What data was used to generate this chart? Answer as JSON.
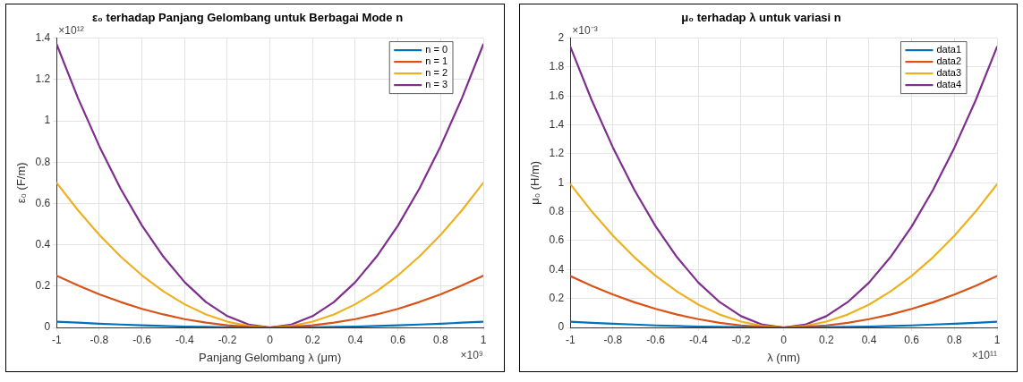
{
  "chart_data": [
    {
      "type": "line",
      "title": "ε₀ terhadap Panjang Gelombang untuk Berbagai Mode n",
      "xlabel": "Panjang Gelombang λ (μm)",
      "ylabel": "ε₀ (F/m)",
      "annotations": [
        "×10¹²",
        "×10⁹"
      ],
      "x": [
        -1,
        -0.9,
        -0.8,
        -0.7,
        -0.6,
        -0.5,
        -0.4,
        -0.3,
        -0.2,
        -0.1,
        0,
        0.1,
        0.2,
        0.3,
        0.4,
        0.5,
        0.6,
        0.7,
        0.8,
        0.9,
        1
      ],
      "series": [
        {
          "name": "n = 0",
          "color": "#0072bd",
          "values": [
            0.028,
            0.023,
            0.018,
            0.014,
            0.01,
            0.007,
            0.004,
            0.003,
            0.001,
            0,
            0,
            0,
            0.001,
            0.003,
            0.004,
            0.007,
            0.01,
            0.014,
            0.018,
            0.023,
            0.028
          ]
        },
        {
          "name": "n = 1",
          "color": "#d95319",
          "values": [
            0.25,
            0.203,
            0.16,
            0.123,
            0.09,
            0.063,
            0.04,
            0.023,
            0.01,
            0.003,
            0,
            0.003,
            0.01,
            0.023,
            0.04,
            0.063,
            0.09,
            0.123,
            0.16,
            0.203,
            0.25
          ]
        },
        {
          "name": "n = 2",
          "color": "#edb120",
          "values": [
            0.7,
            0.567,
            0.448,
            0.343,
            0.252,
            0.175,
            0.112,
            0.063,
            0.028,
            0.007,
            0,
            0.007,
            0.028,
            0.063,
            0.112,
            0.175,
            0.252,
            0.343,
            0.448,
            0.567,
            0.7
          ]
        },
        {
          "name": "n = 3",
          "color": "#7e2f8e",
          "values": [
            1.37,
            1.11,
            0.877,
            0.671,
            0.493,
            0.343,
            0.219,
            0.123,
            0.055,
            0.014,
            0,
            0.014,
            0.055,
            0.123,
            0.219,
            0.343,
            0.493,
            0.671,
            0.877,
            1.11,
            1.37
          ]
        }
      ],
      "xlim": [
        -1,
        1
      ],
      "xticks": [
        -1,
        -0.8,
        -0.6,
        -0.4,
        -0.2,
        0,
        0.2,
        0.4,
        0.6,
        0.8,
        1
      ],
      "ylim": [
        0,
        1.4
      ],
      "yticks": [
        0,
        0.2,
        0.4,
        0.6,
        0.8,
        1,
        1.2,
        1.4
      ],
      "grid": true,
      "legend": "top right",
      "marker": "none",
      "line_style": "solid"
    },
    {
      "type": "line",
      "title": "μ₀ terhadap λ untuk variasi n",
      "xlabel": "λ (nm)",
      "ylabel": "μ₀ (H/m)",
      "annotations": [
        "×10⁻³",
        "×10¹¹"
      ],
      "x": [
        -1,
        -0.9,
        -0.8,
        -0.7,
        -0.6,
        -0.5,
        -0.4,
        -0.3,
        -0.2,
        -0.1,
        0,
        0.1,
        0.2,
        0.3,
        0.4,
        0.5,
        0.6,
        0.7,
        0.8,
        0.9,
        1
      ],
      "series": [
        {
          "name": "data1",
          "color": "#0072bd",
          "values": [
            0.04,
            0.032,
            0.026,
            0.02,
            0.014,
            0.01,
            0.006,
            0.004,
            0.002,
            0,
            0,
            0,
            0.002,
            0.004,
            0.006,
            0.01,
            0.014,
            0.02,
            0.026,
            0.032,
            0.04
          ]
        },
        {
          "name": "data2",
          "color": "#d95319",
          "values": [
            0.355,
            0.288,
            0.227,
            0.174,
            0.128,
            0.089,
            0.057,
            0.032,
            0.014,
            0.004,
            0,
            0.004,
            0.014,
            0.032,
            0.057,
            0.089,
            0.128,
            0.174,
            0.227,
            0.288,
            0.355
          ]
        },
        {
          "name": "data3",
          "color": "#edb120",
          "values": [
            0.99,
            0.802,
            0.634,
            0.485,
            0.356,
            0.248,
            0.158,
            0.089,
            0.04,
            0.01,
            0,
            0.01,
            0.04,
            0.089,
            0.158,
            0.248,
            0.356,
            0.485,
            0.634,
            0.802,
            0.99
          ]
        },
        {
          "name": "data4",
          "color": "#7e2f8e",
          "values": [
            1.94,
            1.571,
            1.242,
            0.951,
            0.698,
            0.485,
            0.31,
            0.175,
            0.078,
            0.019,
            0,
            0.019,
            0.078,
            0.175,
            0.31,
            0.485,
            0.698,
            0.951,
            1.242,
            1.571,
            1.94
          ]
        }
      ],
      "xlim": [
        -1,
        1
      ],
      "xticks": [
        -1,
        -0.8,
        -0.6,
        -0.4,
        -0.2,
        0,
        0.2,
        0.4,
        0.6,
        0.8,
        1
      ],
      "ylim": [
        0,
        2
      ],
      "yticks": [
        0,
        0.2,
        0.4,
        0.6,
        0.8,
        1,
        1.2,
        1.4,
        1.6,
        1.8,
        2
      ],
      "grid": true,
      "legend": "top right",
      "marker": "none",
      "line_style": "solid"
    }
  ]
}
